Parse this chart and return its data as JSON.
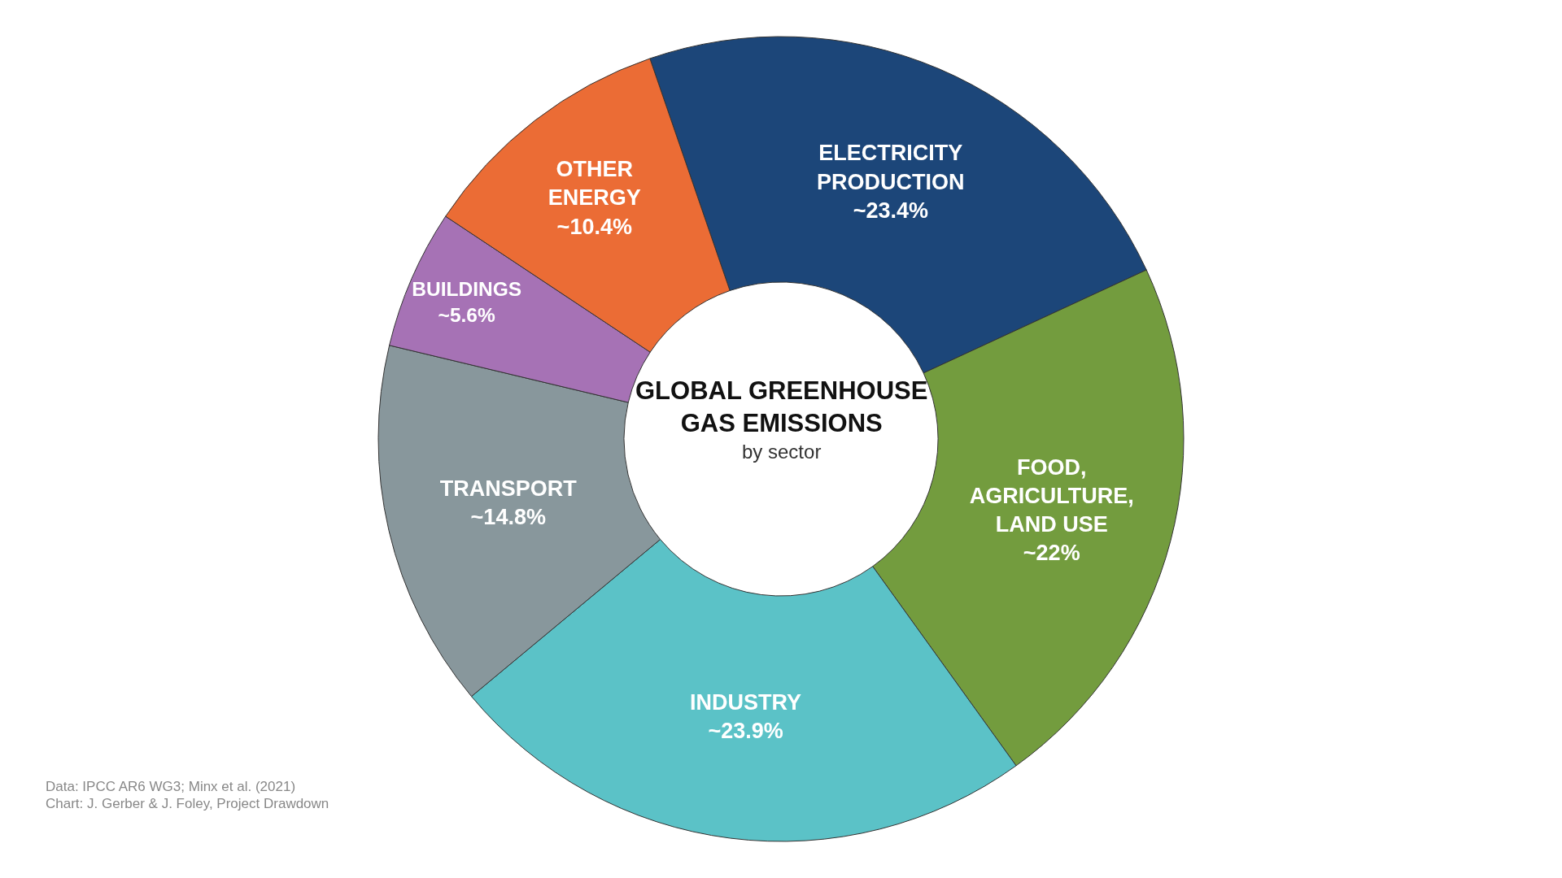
{
  "chart_data": {
    "type": "donut",
    "title": "GLOBAL GREENHOUSE GAS EMISSIONS",
    "subtitle": "by sector",
    "categories": [
      "ELECTRICITY PRODUCTION",
      "FOOD, AGRICULTURE, LAND USE",
      "INDUSTRY",
      "TRANSPORT",
      "BUILDINGS",
      "OTHER ENERGY"
    ],
    "values": [
      23.4,
      22,
      23.9,
      14.8,
      5.6,
      10.4
    ],
    "value_labels": [
      "~23.4%",
      "~22%",
      "~23.9%",
      "~14.8%",
      "~5.6%",
      "~10.4%"
    ],
    "colors": [
      "#1c4679",
      "#739c3e",
      "#5bc2c7",
      "#88979c",
      "#a672b5",
      "#eb6c35"
    ],
    "legend": false,
    "annotations": [
      "Data: IPCC AR6 WG3; Minx et al. (2021)",
      "Chart: J. Gerber & J. Foley, Project Drawdown"
    ]
  }
}
